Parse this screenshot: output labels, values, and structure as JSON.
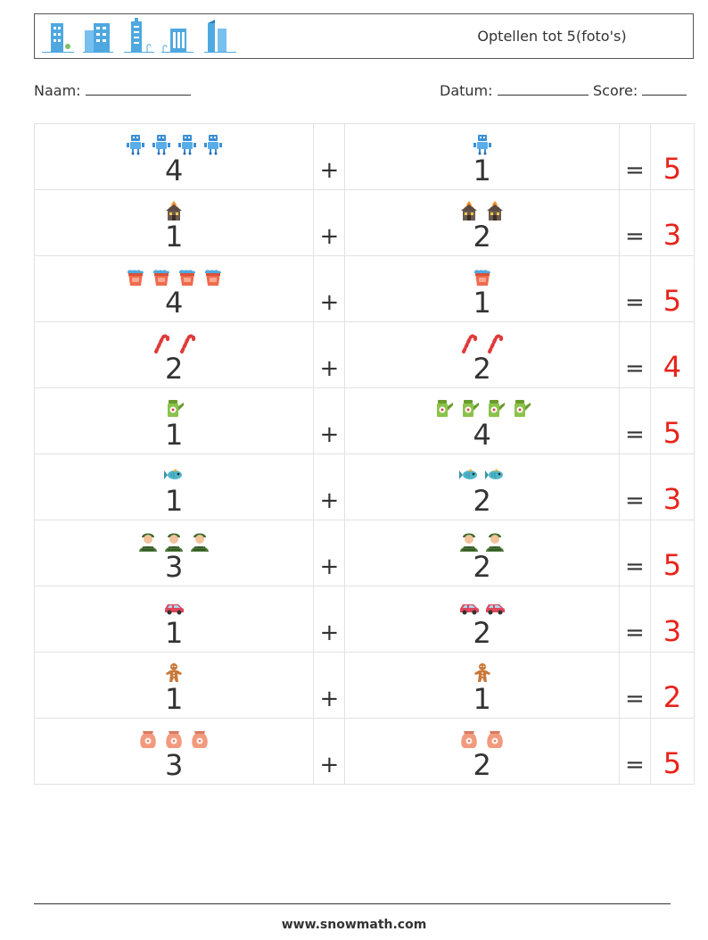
{
  "header": {
    "title": "Optellen tot 5(foto's)",
    "logo_icons": [
      "building-icon-1",
      "building-icon-2",
      "building-icon-3",
      "building-icon-4",
      "building-icon-5"
    ]
  },
  "info": {
    "name_label": "Naam:",
    "date_label": "Datum:",
    "score_label": "Score:"
  },
  "rows": [
    {
      "icon": "robot-icon",
      "a": "4",
      "b": "1",
      "plus": "+",
      "eq": "=",
      "answer": "5",
      "colors": {
        "main": "#3a8fd6"
      }
    },
    {
      "icon": "burning-house-icon",
      "a": "1",
      "b": "2",
      "plus": "+",
      "eq": "=",
      "answer": "3",
      "colors": {
        "main": "#6b5a4e"
      }
    },
    {
      "icon": "bucket-icon",
      "a": "4",
      "b": "1",
      "plus": "+",
      "eq": "=",
      "answer": "5",
      "colors": {
        "main": "#f06b4e"
      }
    },
    {
      "icon": "candy-cane-icon",
      "a": "2",
      "b": "2",
      "plus": "+",
      "eq": "=",
      "answer": "4",
      "colors": {
        "main": "#e03a3a"
      }
    },
    {
      "icon": "watering-can-icon",
      "a": "1",
      "b": "4",
      "plus": "+",
      "eq": "=",
      "answer": "5",
      "colors": {
        "main": "#8bc34a"
      }
    },
    {
      "icon": "fish-icon",
      "a": "1",
      "b": "2",
      "plus": "+",
      "eq": "=",
      "answer": "3",
      "colors": {
        "main": "#4fb6c9"
      }
    },
    {
      "icon": "soldier-icon",
      "a": "3",
      "b": "2",
      "plus": "+",
      "eq": "=",
      "answer": "5",
      "colors": {
        "main": "#4d7a3a"
      }
    },
    {
      "icon": "car-icon",
      "a": "1",
      "b": "2",
      "plus": "+",
      "eq": "=",
      "answer": "3",
      "colors": {
        "main": "#e0475a"
      }
    },
    {
      "icon": "gingerbread-icon",
      "a": "1",
      "b": "1",
      "plus": "+",
      "eq": "=",
      "answer": "2",
      "colors": {
        "main": "#c9793a"
      }
    },
    {
      "icon": "sack-icon",
      "a": "3",
      "b": "2",
      "plus": "+",
      "eq": "=",
      "answer": "5",
      "colors": {
        "main": "#f29a7e"
      }
    }
  ],
  "answer_color": "#e8231a",
  "footer": {
    "text": "www.snowmath.com"
  }
}
